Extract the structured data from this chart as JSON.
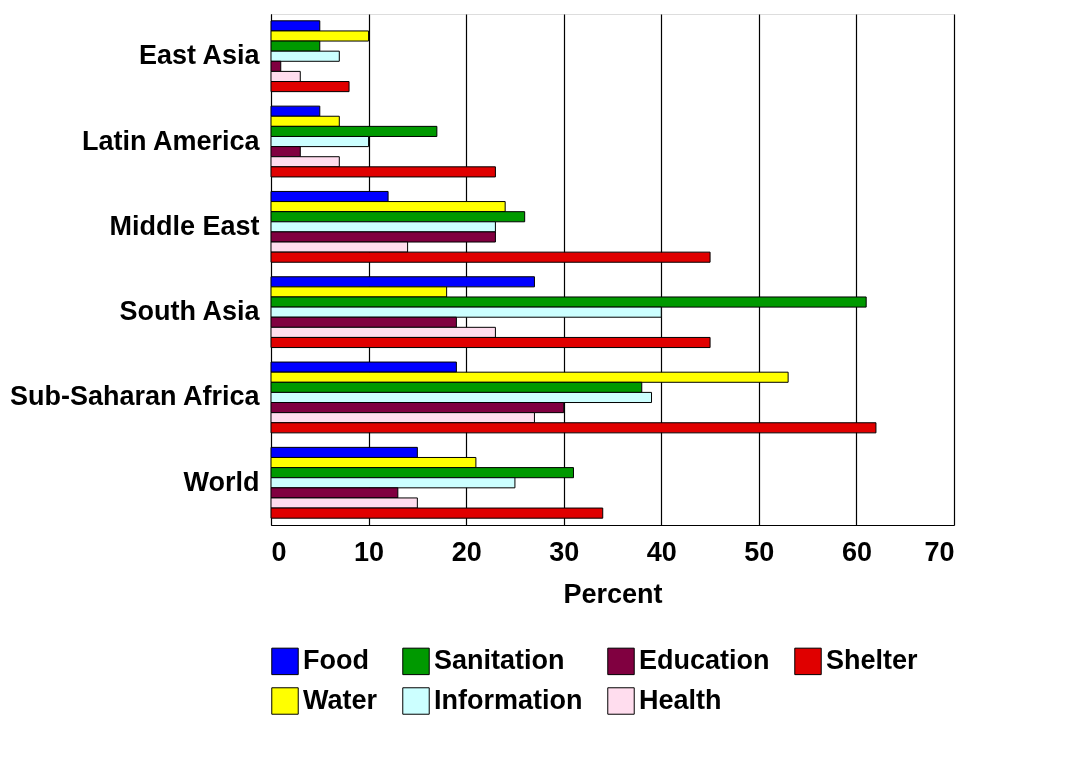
{
  "chart_data": {
    "type": "bar",
    "orientation": "horizontal",
    "xlabel": "Percent",
    "categories": [
      "East Asia",
      "Latin America",
      "Middle East",
      "South Asia",
      "Sub-Saharan Africa",
      "World"
    ],
    "series": [
      {
        "name": "Food",
        "color": "#0000ff",
        "values": [
          5,
          5,
          12,
          27,
          19,
          15
        ]
      },
      {
        "name": "Water",
        "color": "#ffff00",
        "values": [
          10,
          7,
          24,
          18,
          53,
          21
        ]
      },
      {
        "name": "Sanitation",
        "color": "#009900",
        "values": [
          5,
          17,
          26,
          61,
          38,
          31
        ]
      },
      {
        "name": "Information",
        "color": "#ccffff",
        "values": [
          7,
          10,
          23,
          40,
          39,
          25
        ]
      },
      {
        "name": "Education",
        "color": "#800040",
        "values": [
          1,
          3,
          23,
          19,
          30,
          13
        ]
      },
      {
        "name": "Health",
        "color": "#ffddee",
        "values": [
          3,
          7,
          14,
          23,
          27,
          15
        ]
      },
      {
        "name": "Shelter",
        "color": "#e00000",
        "values": [
          8,
          23,
          45,
          45,
          62,
          34
        ]
      }
    ],
    "xlim": [
      0,
      70
    ],
    "xticks": [
      0,
      10,
      20,
      30,
      40,
      50,
      60,
      70
    ],
    "grid": "x",
    "legend": "bottom"
  }
}
